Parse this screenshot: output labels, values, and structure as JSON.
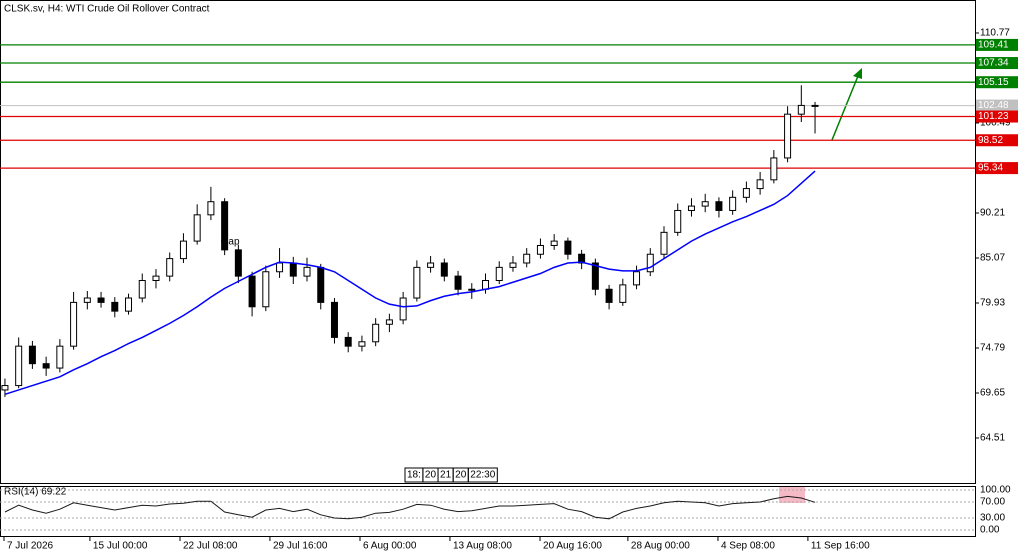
{
  "chart_data": [
    {
      "type": "candlestick",
      "title": "CLSK.sv, H4:  WTI Crude Oil Rollover Contract",
      "ohlc": [
        [
          70,
          71.3,
          69.2,
          70.5
        ],
        [
          70.5,
          76,
          70.2,
          75
        ],
        [
          75,
          75.6,
          72.4,
          73
        ],
        [
          73,
          73.8,
          71.6,
          72.5
        ],
        [
          72.5,
          75.8,
          72,
          75
        ],
        [
          75,
          81.2,
          74.6,
          80
        ],
        [
          80,
          81.3,
          79.2,
          80.5
        ],
        [
          80.5,
          81.2,
          79.4,
          80
        ],
        [
          80,
          80.6,
          78.3,
          79
        ],
        [
          79,
          81,
          78.6,
          80.5
        ],
        [
          80.5,
          83.3,
          80,
          82.5
        ],
        [
          82.5,
          83.8,
          81.6,
          83
        ],
        [
          83,
          85.7,
          82.4,
          85
        ],
        [
          85,
          87.9,
          84.5,
          87
        ],
        [
          87,
          91.2,
          86.6,
          90
        ],
        [
          90,
          93.2,
          89.4,
          91.5
        ],
        [
          91.5,
          91.9,
          85.4,
          86
        ],
        [
          86,
          86.6,
          82.2,
          83
        ],
        [
          83,
          83.5,
          78.4,
          79.5
        ],
        [
          79.5,
          84.2,
          79,
          83.5
        ],
        [
          83.5,
          86.2,
          82.8,
          84.5
        ],
        [
          84.5,
          85.2,
          82.1,
          83
        ],
        [
          83,
          85.1,
          82.4,
          84
        ],
        [
          84,
          84.4,
          79.2,
          80
        ],
        [
          80,
          80.5,
          75.3,
          76
        ],
        [
          76,
          76.6,
          74.3,
          75
        ],
        [
          75,
          76.2,
          74.4,
          75.5
        ],
        [
          75.5,
          78.2,
          75,
          77.5
        ],
        [
          77.5,
          78.7,
          76.6,
          78
        ],
        [
          78,
          81.2,
          77.5,
          80.5
        ],
        [
          80.5,
          84.8,
          80.1,
          84
        ],
        [
          84,
          85.3,
          83.4,
          84.5
        ],
        [
          84.5,
          85,
          82.4,
          83
        ],
        [
          83,
          83.6,
          80.8,
          81.5
        ],
        [
          81.5,
          82.2,
          80.4,
          81.5
        ],
        [
          81.5,
          83.3,
          81,
          82.5
        ],
        [
          82.5,
          84.7,
          82.1,
          84
        ],
        [
          84,
          85.3,
          83.5,
          84.5
        ],
        [
          84.5,
          86.2,
          84,
          85.5
        ],
        [
          85.5,
          87.3,
          85,
          86.5
        ],
        [
          86.5,
          87.8,
          86,
          87
        ],
        [
          87,
          87.4,
          84.9,
          85.5
        ],
        [
          85.5,
          86,
          83.8,
          84.5
        ],
        [
          84.5,
          85,
          80.8,
          81.5
        ],
        [
          81.5,
          82,
          79.2,
          80
        ],
        [
          80,
          82.7,
          79.6,
          82
        ],
        [
          82,
          84.2,
          81.5,
          83.5
        ],
        [
          83.5,
          86.2,
          83,
          85.5
        ],
        [
          85.5,
          88.7,
          85,
          88
        ],
        [
          88,
          91.3,
          87.6,
          90.5
        ],
        [
          90.5,
          91.9,
          89.8,
          91
        ],
        [
          91,
          92.4,
          90.3,
          91.5
        ],
        [
          91.5,
          92,
          89.7,
          90.5
        ],
        [
          90.5,
          92.8,
          90,
          92
        ],
        [
          92,
          93.8,
          91.4,
          93
        ],
        [
          93,
          94.9,
          92.3,
          94
        ],
        [
          94,
          97.4,
          93.6,
          96.5
        ],
        [
          96.5,
          102.4,
          96,
          101.5
        ],
        [
          101.5,
          104.8,
          100.6,
          102.5
        ],
        [
          102.5,
          102.9,
          99.3,
          102.48
        ]
      ],
      "series": [
        {
          "color": "#0000ff",
          "values": [
            69.5,
            70,
            70.5,
            71,
            71.5,
            72.3,
            73,
            73.8,
            74.5,
            75.3,
            76,
            76.8,
            77.6,
            78.5,
            79.5,
            80.6,
            81.6,
            82.4,
            83.2,
            84,
            84.6,
            84.5,
            84.3,
            84,
            83.5,
            82.5,
            81.5,
            80.5,
            79.8,
            79.5,
            79.6,
            80.2,
            80.7,
            81,
            81.2,
            81.5,
            81.8,
            82.3,
            82.8,
            83.3,
            84,
            84.5,
            84.6,
            84.2,
            83.8,
            83.6,
            83.6,
            84,
            85,
            86,
            87,
            87.8,
            88.5,
            89.2,
            89.8,
            90.5,
            91.2,
            92.2,
            93.6,
            95
          ]
        }
      ],
      "xlim": [
        -0.36,
        70.65
      ],
      "xticks": [
        {
          "value": -0.07,
          "label": "7 Jul 2026"
        },
        {
          "value": 6.19,
          "label": "15 Jul 00:00"
        },
        {
          "value": 12.75,
          "label": "22 Jul 08:00"
        },
        {
          "value": 19.3,
          "label": "29 Jul 16:00"
        },
        {
          "value": 25.86,
          "label": "6 Aug 00:00"
        },
        {
          "value": 32.41,
          "label": "13 Aug 08:00"
        },
        {
          "value": 38.97,
          "label": "20 Aug 16:00"
        },
        {
          "value": 45.37,
          "label": "28 Aug 00:00"
        },
        {
          "value": 51.93,
          "label": "4 Sep 08:00"
        },
        {
          "value": 58.48,
          "label": "11 Sep 16:00"
        }
      ],
      "ylim": [
        59.37,
        114.54
      ],
      "yticks": [
        110.77,
        100.49,
        90.21,
        85.07,
        79.93,
        74.79,
        69.65,
        64.51
      ],
      "levels": [
        {
          "value": 109.41,
          "color": "#008000"
        },
        {
          "value": 107.34,
          "color": "#008000"
        },
        {
          "value": 105.15,
          "color": "#008000"
        },
        {
          "value": 101.23,
          "color": "#e00000"
        },
        {
          "value": 98.52,
          "color": "#e00000"
        },
        {
          "value": 95.34,
          "color": "#e00000"
        }
      ],
      "last_price": 102.48,
      "annotations": [
        {
          "text": "Gap",
          "x": 16.4,
          "y": 86.9
        }
      ],
      "scroll_labels": [
        "18:",
        "20",
        "21",
        "20",
        "22:30"
      ]
    },
    {
      "type": "line",
      "title": "RSI(14) 69.22",
      "color": "#1a1a1a",
      "values": [
        45,
        62,
        50,
        42,
        52,
        68,
        62,
        56,
        50,
        56,
        62,
        60,
        65,
        67,
        72,
        72,
        45,
        38,
        32,
        50,
        54,
        46,
        52,
        38,
        30,
        28,
        32,
        42,
        44,
        52,
        64,
        62,
        52,
        46,
        48,
        54,
        60,
        60,
        62,
        64,
        66,
        52,
        46,
        32,
        28,
        45,
        54,
        60,
        68,
        72,
        70,
        68,
        60,
        66,
        68,
        70,
        78,
        84,
        80,
        69.22
      ],
      "ylim": [
        -15,
        112.5
      ],
      "yticks": [
        {
          "value": 100,
          "label": "100.00"
        },
        {
          "value": 70,
          "label": "70.00"
        },
        {
          "value": 30,
          "label": "30.00"
        },
        {
          "value": 0,
          "label": "0.00"
        }
      ]
    }
  ]
}
